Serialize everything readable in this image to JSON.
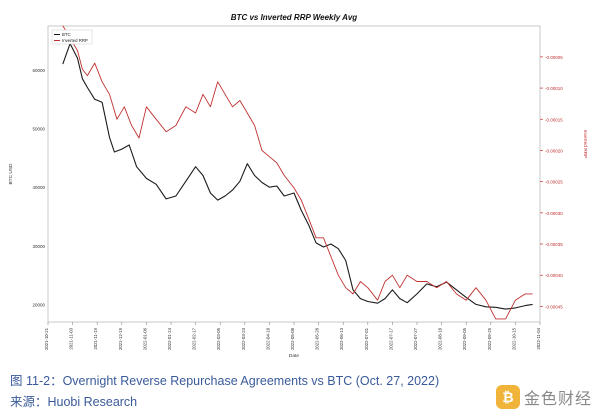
{
  "chart_data": {
    "type": "line",
    "title": "BTC vs Inverted RRP Weekly Avg",
    "xlabel": "Date",
    "ylabel_left": "BTC USD",
    "ylabel_right": "Inverted RRP",
    "x_ticks": [
      "2021-10-21",
      "2021-11-03",
      "2021-11-19",
      "2021-12-19",
      "2022-01-06",
      "2022-01-24",
      "2022-02-17",
      "2022-03-05",
      "2022-03-23",
      "2022-04-18",
      "2022-05-08",
      "2022-05-28",
      "2022-06-13",
      "2022-07-01",
      "2022-07-17",
      "2022-07-27",
      "2022-08-18",
      "2022-09-05",
      "2022-09-25",
      "2022-10-15",
      "2022-11-04"
    ],
    "y_left_ticks": [
      "20000",
      "30000",
      "40000",
      "50000",
      "60000"
    ],
    "y_left_values": [
      20000,
      30000,
      40000,
      50000,
      60000
    ],
    "y_right_ticks": [
      "-0.00005",
      "-0.00010",
      "-0.00015",
      "-0.00020",
      "-0.00025",
      "-0.00030",
      "-0.00035",
      "-0.00040",
      "-0.00045"
    ],
    "y_right_values": [
      -5e-05,
      -0.0001,
      -0.00015,
      -0.0002,
      -0.00025,
      -0.0003,
      -0.00035,
      -0.0004,
      -0.00045
    ],
    "ylim_left": [
      17000,
      67500
    ],
    "ylim_right": [
      -0.000475,
      -5e-07
    ],
    "grid": true,
    "legend_position": "top-left",
    "series": [
      {
        "name": "BTC",
        "axis": "left",
        "color": "#1a1a1a",
        "x": [
          0.03,
          0.045,
          0.06,
          0.07,
          0.08,
          0.095,
          0.11,
          0.125,
          0.135,
          0.15,
          0.165,
          0.18,
          0.2,
          0.22,
          0.24,
          0.26,
          0.28,
          0.3,
          0.315,
          0.33,
          0.345,
          0.36,
          0.375,
          0.39,
          0.405,
          0.42,
          0.435,
          0.45,
          0.465,
          0.48,
          0.5,
          0.515,
          0.53,
          0.545,
          0.56,
          0.575,
          0.59,
          0.605,
          0.62,
          0.635,
          0.65,
          0.67,
          0.685,
          0.7,
          0.715,
          0.73,
          0.75,
          0.77,
          0.79,
          0.81,
          0.83,
          0.85,
          0.87,
          0.89,
          0.91,
          0.93,
          0.95,
          0.97,
          0.985
        ],
        "values": [
          61000,
          64500,
          62000,
          58500,
          57000,
          55000,
          54500,
          48500,
          46000,
          46500,
          47200,
          43500,
          41500,
          40500,
          38000,
          38500,
          41000,
          43500,
          42000,
          39000,
          37800,
          38500,
          39500,
          41000,
          44000,
          42000,
          40800,
          40000,
          40200,
          38500,
          39000,
          36000,
          33500,
          30500,
          29800,
          30300,
          29500,
          27500,
          22500,
          21000,
          20500,
          20200,
          21000,
          22500,
          21000,
          20300,
          21800,
          23500,
          23000,
          23800,
          22500,
          21200,
          20000,
          19600,
          19500,
          19200,
          19400,
          19800,
          20000
        ]
      },
      {
        "name": "Inverted RRP",
        "axis": "right",
        "color": "#c03030",
        "x": [
          0.03,
          0.045,
          0.06,
          0.07,
          0.08,
          0.095,
          0.11,
          0.125,
          0.14,
          0.155,
          0.17,
          0.185,
          0.2,
          0.22,
          0.24,
          0.26,
          0.28,
          0.3,
          0.315,
          0.33,
          0.345,
          0.36,
          0.375,
          0.39,
          0.405,
          0.42,
          0.435,
          0.45,
          0.465,
          0.48,
          0.5,
          0.515,
          0.53,
          0.545,
          0.56,
          0.575,
          0.59,
          0.605,
          0.62,
          0.635,
          0.65,
          0.67,
          0.685,
          0.7,
          0.715,
          0.73,
          0.75,
          0.77,
          0.79,
          0.81,
          0.83,
          0.85,
          0.87,
          0.89,
          0.91,
          0.93,
          0.95,
          0.97,
          0.985
        ],
        "values": [
          -0.0,
          -2e-05,
          -4e-05,
          -7e-05,
          -8e-05,
          -6e-05,
          -9e-05,
          -0.00011,
          -0.00015,
          -0.00013,
          -0.00016,
          -0.00018,
          -0.00013,
          -0.00015,
          -0.00017,
          -0.00016,
          -0.00013,
          -0.00014,
          -0.00011,
          -0.00013,
          -9e-05,
          -0.00011,
          -0.00013,
          -0.00012,
          -0.00014,
          -0.00016,
          -0.0002,
          -0.00021,
          -0.00022,
          -0.00024,
          -0.00026,
          -0.00028,
          -0.00031,
          -0.00034,
          -0.00034,
          -0.00037,
          -0.0004,
          -0.00042,
          -0.00043,
          -0.00041,
          -0.00042,
          -0.00044,
          -0.00041,
          -0.0004,
          -0.00042,
          -0.0004,
          -0.00041,
          -0.00041,
          -0.00042,
          -0.00041,
          -0.00043,
          -0.00044,
          -0.00042,
          -0.00044,
          -0.00047,
          -0.00047,
          -0.00044,
          -0.00043,
          -0.00043
        ]
      }
    ]
  },
  "caption": {
    "main": "图 11-2：Overnight Reverse Repurchase Agreements vs BTC (Oct. 27, 2022)",
    "source": "来源：Huobi Research"
  },
  "brand": {
    "mark": "₿",
    "text": "金色财经"
  },
  "colors": {
    "btc_line": "#1a1a1a",
    "rrp_line": "#c03030",
    "right_axis": "#c03030",
    "caption": "#3a5a9a"
  }
}
